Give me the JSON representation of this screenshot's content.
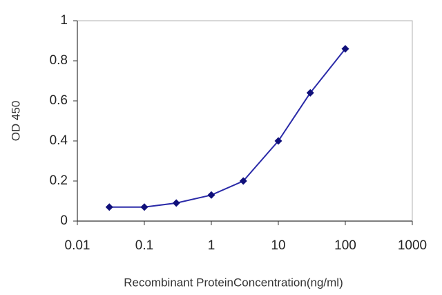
{
  "chart_data": {
    "type": "line",
    "x_label": "Recombinant ProteinConcentration(ng/ml)",
    "y_label": "OD 450",
    "x": [
      0.03,
      0.1,
      0.3,
      1,
      3,
      10,
      30,
      100
    ],
    "series": [
      {
        "color": "#2a2aa8",
        "marker_color": "#10107a",
        "values": [
          0.07,
          0.07,
          0.09,
          0.13,
          0.2,
          0.4,
          0.64,
          0.86
        ]
      }
    ],
    "xlim": [
      0.01,
      1000
    ],
    "xticks": [
      0.01,
      0.1,
      1,
      10,
      100,
      1000
    ],
    "xscale": "log",
    "ylim": [
      0,
      1
    ],
    "yticks": [
      0,
      0.2,
      0.4,
      0.6,
      0.8,
      1
    ],
    "grid": false
  }
}
